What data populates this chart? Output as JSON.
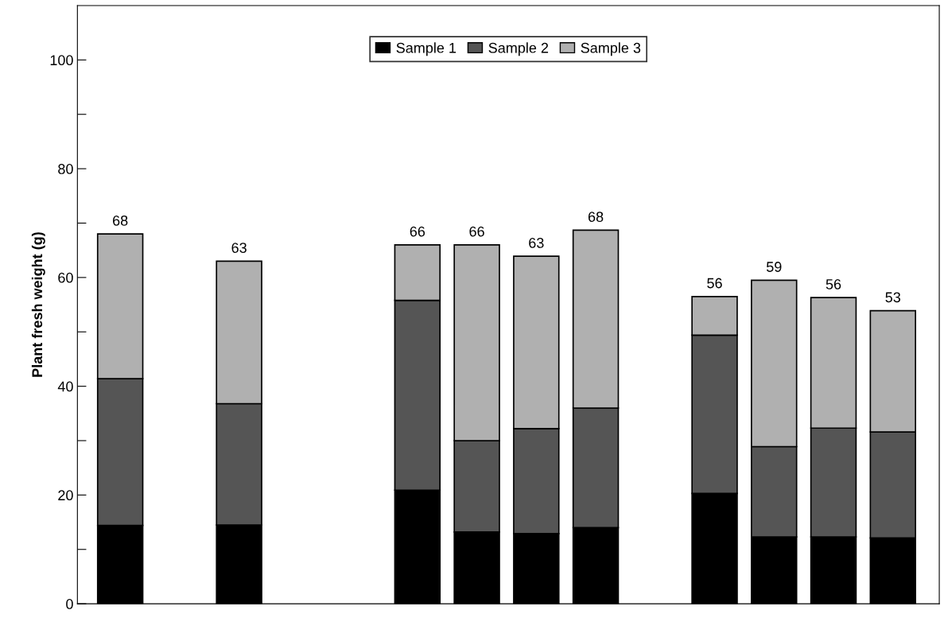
{
  "chart_data": {
    "type": "bar",
    "stacked": true,
    "ylabel": "Plant fresh weight (g)",
    "categories": [
      null,
      null,
      null,
      null,
      null,
      null,
      null,
      null,
      null,
      null,
      null,
      null,
      null,
      null
    ],
    "series": [
      {
        "name": "Sample 1",
        "color": "#000000",
        "values": [
          14.4,
          null,
          14.5,
          null,
          null,
          20.9,
          13.2,
          12.9,
          14.0,
          null,
          20.3,
          12.3,
          12.3,
          12.1
        ]
      },
      {
        "name": "Sample 2",
        "color": "#555555",
        "values": [
          27.0,
          null,
          22.3,
          null,
          null,
          34.9,
          16.8,
          19.3,
          22.0,
          null,
          29.1,
          16.6,
          20.0,
          19.5
        ]
      },
      {
        "name": "Sample 3",
        "color": "#b0b0b0",
        "values": [
          26.6,
          null,
          26.2,
          null,
          null,
          10.2,
          36.0,
          31.7,
          32.7,
          null,
          7.1,
          30.6,
          24.0,
          22.3
        ]
      }
    ],
    "totals": [
      "68",
      null,
      "63",
      null,
      null,
      "66",
      "66",
      "63",
      "68",
      null,
      "56",
      "59",
      "56",
      "53"
    ],
    "ylim": [
      0,
      110
    ],
    "yticks": [
      0,
      {
        "value": 10,
        "label": null
      },
      20,
      {
        "value": 30,
        "label": null
      },
      40,
      {
        "value": 50,
        "label": null
      },
      60,
      {
        "value": 70,
        "label": null
      },
      80,
      {
        "value": 90,
        "label": null
      },
      100
    ],
    "grid": false,
    "legend": "top",
    "tick_labels": "y"
  }
}
